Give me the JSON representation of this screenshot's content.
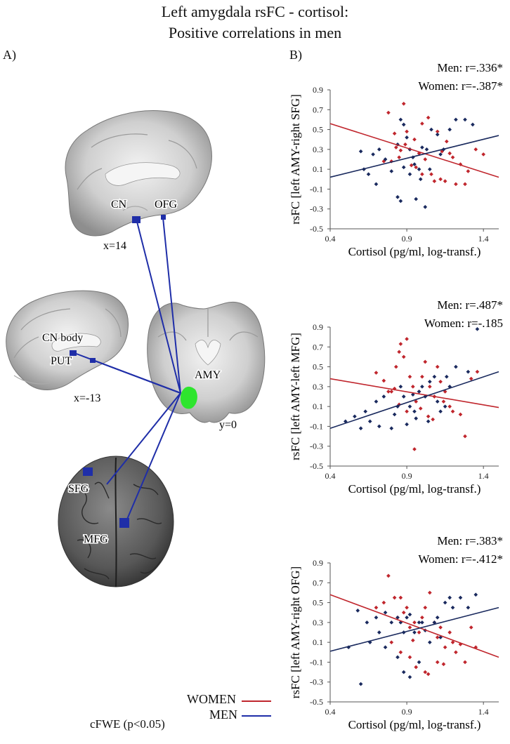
{
  "figure": {
    "title_line1": "Left amygdala rsFC - cortisol:",
    "title_line2": "Positive correlations in men",
    "panel_a": "A)",
    "panel_b": "B)",
    "brain_labels": {
      "cn": "CN",
      "ofg": "OFG",
      "x14": "x=14",
      "cn_body": "CN body",
      "put": "PUT",
      "x_13": "x=-13",
      "amy": "AMY",
      "y0": "y=0",
      "sfg": "SFG",
      "mfg": "MFG"
    },
    "legend": {
      "women": "WOMEN",
      "men": "MEN",
      "women_color": "#c0262d",
      "men_color": "#1f2ea8"
    },
    "footnote": "cFWE (p<0.05)"
  },
  "chart_data": [
    {
      "type": "scatter",
      "ylabel": "rsFC [left AMY-right SFG]",
      "xlabel": "Cortisol (pg/ml, log-transf.)",
      "xlim": [
        0.4,
        1.5
      ],
      "ylim": [
        -0.5,
        0.9
      ],
      "xticks": [
        "0.4",
        "0.9",
        "1.4"
      ],
      "yticks": [
        "-0.5",
        "-0.3",
        "-0.1",
        "0.1",
        "0.3",
        "0.5",
        "0.7",
        "0.9"
      ],
      "annotations": [
        "Men: r=.336*",
        "Women: r=-.387*"
      ],
      "series": [
        {
          "color": "#c0262d",
          "fit": [
            [
              0.4,
              0.56
            ],
            [
              1.5,
              0.02
            ]
          ],
          "points": [
            [
              0.78,
              0.67
            ],
            [
              0.82,
              0.46
            ],
            [
              0.86,
              0.29
            ],
            [
              0.88,
              0.76
            ],
            [
              0.9,
              0.48
            ],
            [
              0.92,
              0.3
            ],
            [
              0.95,
              0.4
            ],
            [
              1.0,
              0.56
            ],
            [
              1.04,
              0.62
            ],
            [
              1.1,
              0.48
            ],
            [
              1.16,
              0.38
            ],
            [
              1.2,
              0.22
            ],
            [
              1.25,
              0.15
            ],
            [
              1.3,
              0.08
            ],
            [
              1.35,
              0.3
            ],
            [
              1.4,
              0.25
            ],
            [
              0.8,
              0.18
            ],
            [
              0.85,
              0.22
            ],
            [
              0.93,
              0.14
            ],
            [
              0.98,
              0.26
            ],
            [
              1.02,
              0.2
            ],
            [
              1.06,
              0.05
            ],
            [
              1.08,
              -0.02
            ],
            [
              1.12,
              0.0
            ],
            [
              1.15,
              -0.02
            ],
            [
              1.22,
              -0.05
            ],
            [
              1.28,
              -0.05
            ],
            [
              1.18,
              0.26
            ],
            [
              0.96,
              0.12
            ],
            [
              1.0,
              0.05
            ],
            [
              0.75,
              0.18
            ],
            [
              0.83,
              0.32
            ],
            [
              0.89,
              0.35
            ],
            [
              1.13,
              0.28
            ]
          ]
        },
        {
          "color": "#1a2a5e",
          "fit": [
            [
              0.4,
              0.02
            ],
            [
              1.5,
              0.44
            ]
          ],
          "points": [
            [
              0.62,
              0.1
            ],
            [
              0.65,
              0.05
            ],
            [
              0.68,
              0.25
            ],
            [
              0.72,
              0.3
            ],
            [
              0.76,
              0.2
            ],
            [
              0.8,
              0.08
            ],
            [
              0.84,
              0.35
            ],
            [
              0.86,
              0.6
            ],
            [
              0.88,
              0.55
            ],
            [
              0.9,
              0.42
            ],
            [
              0.92,
              0.3
            ],
            [
              0.95,
              0.15
            ],
            [
              0.98,
              0.1
            ],
            [
              1.0,
              0.32
            ],
            [
              1.03,
              0.3
            ],
            [
              1.06,
              0.5
            ],
            [
              1.1,
              0.45
            ],
            [
              1.12,
              0.25
            ],
            [
              1.18,
              0.5
            ],
            [
              1.22,
              0.6
            ],
            [
              1.28,
              0.6
            ],
            [
              1.33,
              0.55
            ],
            [
              0.84,
              -0.18
            ],
            [
              0.86,
              -0.22
            ],
            [
              0.96,
              -0.2
            ],
            [
              1.02,
              -0.28
            ],
            [
              0.88,
              0.12
            ],
            [
              0.92,
              0.05
            ],
            [
              0.99,
              0.0
            ],
            [
              1.05,
              0.1
            ],
            [
              0.6,
              0.28
            ],
            [
              0.7,
              -0.05
            ],
            [
              1.14,
              0.3
            ],
            [
              0.94,
              0.22
            ]
          ]
        }
      ]
    },
    {
      "type": "scatter",
      "ylabel": "rsFC [left AMY-left MFG]",
      "xlabel": "Cortisol (pg/ml, log-transf.)",
      "xlim": [
        0.4,
        1.5
      ],
      "ylim": [
        -0.5,
        0.9
      ],
      "xticks": [
        "0.4",
        "0.9",
        "1.4"
      ],
      "yticks": [
        "-0.5",
        "-0.3",
        "-0.1",
        "0.1",
        "0.3",
        "0.5",
        "0.7",
        "0.9"
      ],
      "annotations": [
        "Men: r=.487*",
        "Women: r=-.185"
      ],
      "series": [
        {
          "color": "#c0262d",
          "fit": [
            [
              0.4,
              0.38
            ],
            [
              1.5,
              0.09
            ]
          ],
          "points": [
            [
              0.7,
              0.44
            ],
            [
              0.75,
              0.36
            ],
            [
              0.8,
              0.25
            ],
            [
              0.83,
              0.5
            ],
            [
              0.85,
              0.65
            ],
            [
              0.86,
              0.73
            ],
            [
              0.88,
              0.6
            ],
            [
              0.9,
              0.78
            ],
            [
              0.92,
              0.4
            ],
            [
              0.94,
              0.3
            ],
            [
              0.96,
              0.15
            ],
            [
              0.98,
              0.25
            ],
            [
              1.0,
              0.4
            ],
            [
              1.02,
              0.55
            ],
            [
              1.05,
              0.3
            ],
            [
              1.08,
              0.2
            ],
            [
              1.1,
              0.5
            ],
            [
              1.12,
              0.35
            ],
            [
              1.15,
              0.25
            ],
            [
              1.18,
              0.1
            ],
            [
              1.2,
              0.05
            ],
            [
              1.25,
              0.02
            ],
            [
              1.28,
              -0.2
            ],
            [
              1.32,
              0.38
            ],
            [
              1.36,
              0.45
            ],
            [
              0.95,
              -0.33
            ],
            [
              0.9,
              0.05
            ],
            [
              0.85,
              0.12
            ],
            [
              0.82,
              0.28
            ],
            [
              1.04,
              0.0
            ],
            [
              1.07,
              -0.03
            ],
            [
              0.78,
              0.25
            ],
            [
              1.14,
              0.15
            ],
            [
              0.99,
              0.08
            ]
          ]
        },
        {
          "color": "#1a2a5e",
          "fit": [
            [
              0.4,
              -0.12
            ],
            [
              1.5,
              0.45
            ]
          ],
          "points": [
            [
              0.5,
              -0.05
            ],
            [
              0.56,
              0.0
            ],
            [
              0.6,
              -0.12
            ],
            [
              0.63,
              0.05
            ],
            [
              0.66,
              -0.05
            ],
            [
              0.7,
              0.15
            ],
            [
              0.75,
              0.2
            ],
            [
              0.8,
              -0.12
            ],
            [
              0.84,
              0.1
            ],
            [
              0.86,
              0.3
            ],
            [
              0.88,
              0.2
            ],
            [
              0.92,
              0.1
            ],
            [
              0.95,
              0.05
            ],
            [
              0.98,
              0.25
            ],
            [
              1.0,
              0.3
            ],
            [
              1.02,
              0.2
            ],
            [
              1.05,
              0.35
            ],
            [
              1.08,
              0.4
            ],
            [
              1.1,
              0.15
            ],
            [
              1.12,
              0.05
            ],
            [
              1.15,
              0.1
            ],
            [
              1.18,
              0.3
            ],
            [
              1.22,
              0.5
            ],
            [
              1.3,
              0.45
            ],
            [
              1.36,
              0.88
            ],
            [
              0.9,
              -0.08
            ],
            [
              0.96,
              -0.02
            ],
            [
              1.04,
              -0.05
            ],
            [
              0.72,
              -0.1
            ],
            [
              0.82,
              0.02
            ],
            [
              1.16,
              0.4
            ],
            [
              0.94,
              0.22
            ]
          ]
        }
      ]
    },
    {
      "type": "scatter",
      "ylabel": "rsFC [left AMY-right OFG]",
      "xlabel": "Cortisol (pg/ml, log-transf.)",
      "xlim": [
        0.4,
        1.5
      ],
      "ylim": [
        -0.5,
        0.9
      ],
      "xticks": [
        "0.4",
        "0.9",
        "1.4"
      ],
      "yticks": [
        "-0.5",
        "-0.3",
        "-0.1",
        "0.1",
        "0.3",
        "0.5",
        "0.7",
        "0.9"
      ],
      "annotations": [
        "Men: r=.383*",
        "Women: r=-.412*"
      ],
      "series": [
        {
          "color": "#c0262d",
          "fit": [
            [
              0.4,
              0.58
            ],
            [
              1.5,
              -0.05
            ]
          ],
          "points": [
            [
              0.7,
              0.45
            ],
            [
              0.75,
              0.5
            ],
            [
              0.78,
              0.77
            ],
            [
              0.82,
              0.55
            ],
            [
              0.84,
              0.35
            ],
            [
              0.86,
              0.55
            ],
            [
              0.88,
              0.4
            ],
            [
              0.9,
              0.45
            ],
            [
              0.92,
              0.25
            ],
            [
              0.95,
              0.3
            ],
            [
              0.98,
              0.2
            ],
            [
              1.0,
              0.35
            ],
            [
              1.02,
              0.45
            ],
            [
              1.05,
              0.6
            ],
            [
              1.08,
              0.3
            ],
            [
              1.1,
              0.15
            ],
            [
              1.12,
              0.25
            ],
            [
              1.15,
              0.05
            ],
            [
              1.18,
              0.2
            ],
            [
              1.2,
              0.1
            ],
            [
              1.22,
              0.0
            ],
            [
              1.25,
              0.08
            ],
            [
              1.28,
              -0.1
            ],
            [
              1.32,
              0.25
            ],
            [
              1.35,
              0.05
            ],
            [
              0.8,
              0.1
            ],
            [
              0.86,
              0.0
            ],
            [
              0.92,
              -0.05
            ],
            [
              0.96,
              -0.15
            ],
            [
              1.02,
              -0.2
            ],
            [
              1.04,
              -0.22
            ],
            [
              1.1,
              -0.1
            ],
            [
              1.14,
              -0.12
            ],
            [
              0.94,
              0.12
            ]
          ]
        },
        {
          "color": "#1a2a5e",
          "fit": [
            [
              0.4,
              0.01
            ],
            [
              1.5,
              0.45
            ]
          ],
          "points": [
            [
              0.52,
              0.05
            ],
            [
              0.58,
              0.42
            ],
            [
              0.6,
              -0.32
            ],
            [
              0.64,
              0.3
            ],
            [
              0.66,
              0.1
            ],
            [
              0.7,
              0.35
            ],
            [
              0.72,
              0.2
            ],
            [
              0.76,
              0.4
            ],
            [
              0.8,
              0.3
            ],
            [
              0.84,
              0.35
            ],
            [
              0.86,
              0.3
            ],
            [
              0.88,
              0.2
            ],
            [
              0.9,
              0.35
            ],
            [
              0.92,
              0.38
            ],
            [
              0.95,
              0.2
            ],
            [
              0.98,
              0.3
            ],
            [
              1.0,
              0.3
            ],
            [
              1.02,
              0.22
            ],
            [
              1.05,
              0.1
            ],
            [
              1.08,
              0.3
            ],
            [
              1.12,
              0.15
            ],
            [
              1.15,
              0.5
            ],
            [
              1.18,
              0.55
            ],
            [
              1.2,
              0.45
            ],
            [
              1.25,
              0.55
            ],
            [
              1.3,
              0.45
            ],
            [
              1.35,
              0.58
            ],
            [
              0.88,
              -0.2
            ],
            [
              0.92,
              -0.25
            ],
            [
              0.98,
              -0.1
            ],
            [
              0.84,
              -0.05
            ],
            [
              1.1,
              0.35
            ],
            [
              0.76,
              0.05
            ]
          ]
        }
      ]
    }
  ]
}
